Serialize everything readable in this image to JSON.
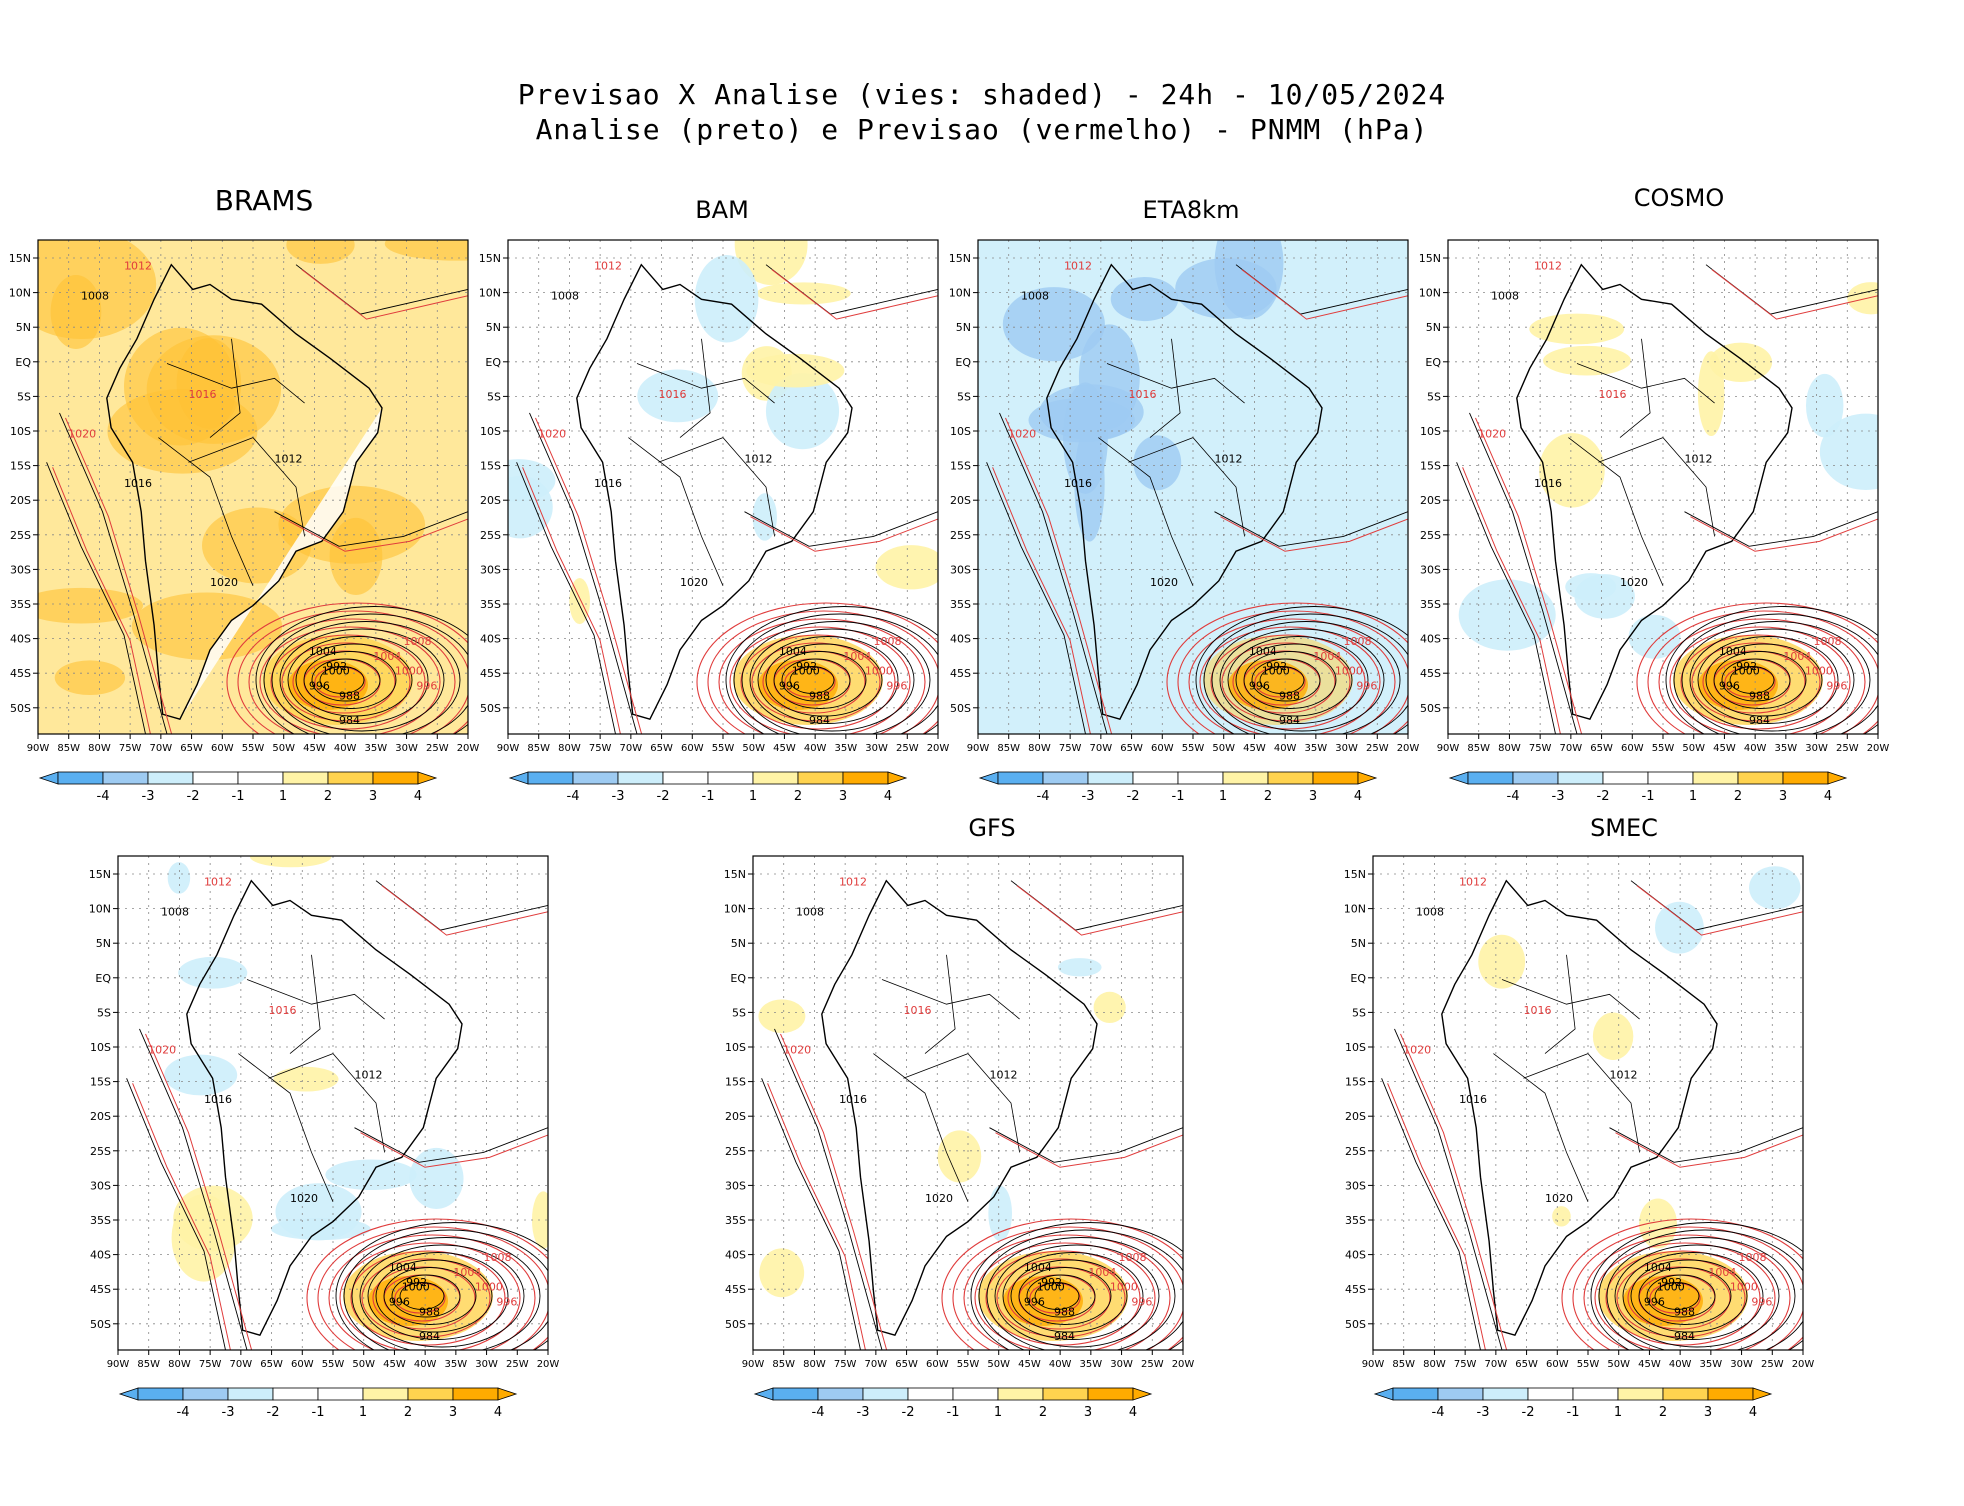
{
  "header": {
    "title_line1": "Previsao X Analise (vies: shaded) - 24h - 10/05/2024",
    "title_line2": "Analise (preto) e Previsao (vermelho) - PNMM (hPa)"
  },
  "axes": {
    "lat_labels": [
      "15N",
      "10N",
      "5N",
      "EQ",
      "5S",
      "10S",
      "15S",
      "20S",
      "25S",
      "30S",
      "35S",
      "40S",
      "45S",
      "50S"
    ],
    "lon_labels": [
      "90W",
      "85W",
      "80W",
      "75W",
      "70W",
      "65W",
      "60W",
      "55W",
      "50W",
      "45W",
      "40W",
      "35W",
      "30W",
      "25W",
      "20W"
    ]
  },
  "colorbar": {
    "labels": [
      "-4",
      "-3",
      "-2",
      "-1",
      "1",
      "2",
      "3",
      "4"
    ],
    "colors": [
      "#5aaff0",
      "#9ecbf2",
      "#cdeefb",
      "#ffffff",
      "#ffffff",
      "#fff3a6",
      "#ffd34f",
      "#ffab00"
    ]
  },
  "isobar_labels": {
    "black": [
      "1008",
      "1012",
      "1016",
      "1020",
      "1004",
      "1000",
      "996",
      "992",
      "988",
      "984"
    ],
    "red": [
      "1012",
      "1016",
      "1020",
      "1008",
      "1004",
      "1000",
      "996"
    ]
  },
  "panels": [
    {
      "name": "BRAMS",
      "bias": "warm"
    },
    {
      "name": "BAM",
      "bias": "mixed"
    },
    {
      "name": "ETA8km",
      "bias": "cool"
    },
    {
      "name": "COSMO",
      "bias": "mixed"
    },
    {
      "name": "",
      "bias": "mixed"
    },
    {
      "name": "GFS",
      "bias": "neutral"
    },
    {
      "name": "SMEC",
      "bias": "neutral"
    }
  ],
  "colors": {
    "analysis": "#000000",
    "forecast": "#e03c3c",
    "neg": "#5aaff0",
    "pos": "#ffab00"
  }
}
